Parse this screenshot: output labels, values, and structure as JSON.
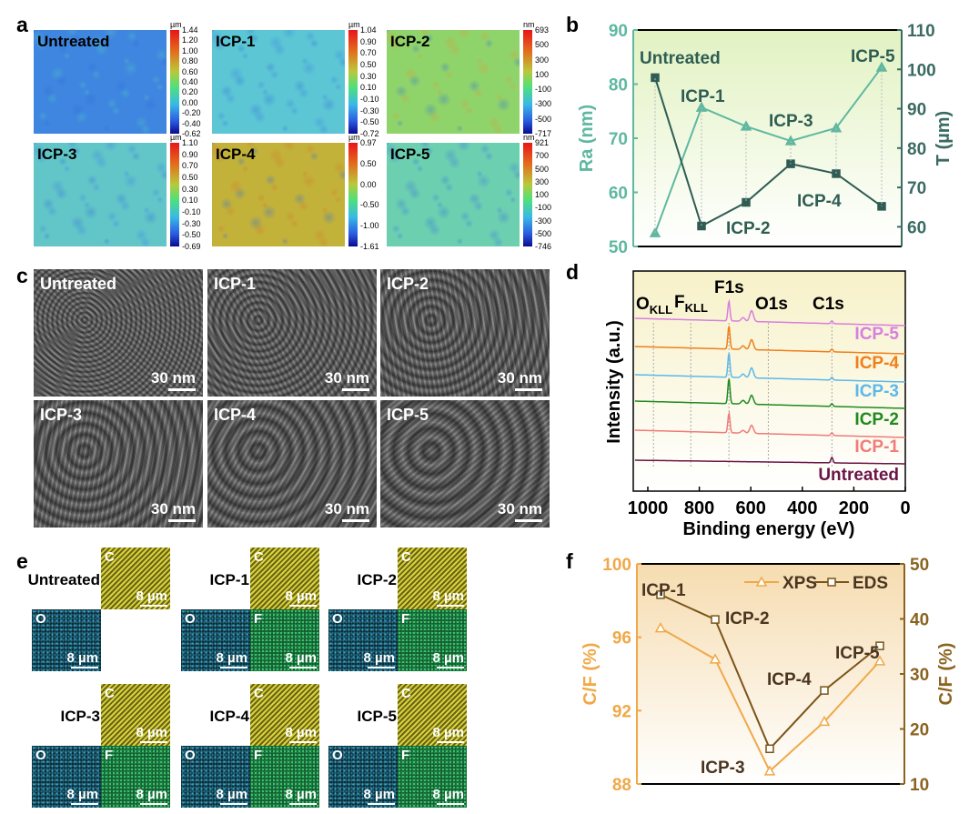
{
  "panel_labels": [
    "a",
    "b",
    "c",
    "d",
    "e",
    "f"
  ],
  "afm_maps": [
    {
      "name": "Untreated",
      "unit": "µm",
      "ticks": [
        "1.44",
        "1.20",
        "1.00",
        "0.80",
        "0.60",
        "0.40",
        "0.20",
        "0.00",
        "-0.20",
        "-0.40",
        "-0.62"
      ],
      "base": "#3f86e0",
      "spot": "#4fc8c0"
    },
    {
      "name": "ICP-1",
      "unit": "µm",
      "ticks": [
        "1.04",
        "0.90",
        "0.70",
        "0.50",
        "0.30",
        "0.10",
        "-0.10",
        "-0.30",
        "-0.50",
        "-0.72"
      ],
      "base": "#5cc6d4",
      "spot": "#3a7ee0"
    },
    {
      "name": "ICP-2",
      "unit": "nm",
      "ticks": [
        "693",
        "500",
        "300",
        "100",
        "-100",
        "-300",
        "-500",
        "-717"
      ],
      "base": "#8fd46a",
      "spot": "#d89a3a"
    },
    {
      "name": "ICP-3",
      "unit": "µm",
      "ticks": [
        "1.10",
        "0.90",
        "0.70",
        "0.50",
        "0.30",
        "0.10",
        "-0.10",
        "-0.30",
        "-0.50",
        "-0.69"
      ],
      "base": "#62c6c8",
      "spot": "#3a80e0"
    },
    {
      "name": "ICP-4",
      "unit": "µm",
      "ticks": [
        "0.97",
        "0.50",
        "0.00",
        "-0.50",
        "-1.00",
        "-1.61"
      ],
      "base": "#c2b23a",
      "spot": "#d4762a"
    },
    {
      "name": "ICP-5",
      "unit": "nm",
      "ticks": [
        "921",
        "700",
        "500",
        "300",
        "100",
        "-100",
        "-300",
        "-500",
        "-746"
      ],
      "base": "#6cd0b0",
      "spot": "#3a70e0"
    }
  ],
  "sem_images": [
    {
      "name": "Untreated",
      "scale": "30 nm"
    },
    {
      "name": "ICP-1",
      "scale": "30 nm"
    },
    {
      "name": "ICP-2",
      "scale": "30 nm"
    },
    {
      "name": "ICP-3",
      "scale": "30 nm"
    },
    {
      "name": "ICP-4",
      "scale": "30 nm"
    },
    {
      "name": "ICP-5",
      "scale": "30 nm"
    }
  ],
  "eds_maps": [
    {
      "name": "Untreated",
      "elements": [
        {
          "el": "C",
          "scale": "8 µm"
        },
        {
          "el": "O",
          "scale": "8 µm"
        }
      ]
    },
    {
      "name": "ICP-1",
      "elements": [
        {
          "el": "C",
          "scale": "8 µm"
        },
        {
          "el": "O",
          "scale": "8 µm"
        },
        {
          "el": "F",
          "scale": "8 µm"
        }
      ]
    },
    {
      "name": "ICP-2",
      "elements": [
        {
          "el": "C",
          "scale": "8 µm"
        },
        {
          "el": "O",
          "scale": "8 µm"
        },
        {
          "el": "F",
          "scale": "8 µm"
        }
      ]
    },
    {
      "name": "ICP-3",
      "elements": [
        {
          "el": "C",
          "scale": "8 µm"
        },
        {
          "el": "O",
          "scale": "8 µm"
        },
        {
          "el": "F",
          "scale": "8 µm"
        }
      ]
    },
    {
      "name": "ICP-4",
      "elements": [
        {
          "el": "C",
          "scale": "8 µm"
        },
        {
          "el": "O",
          "scale": "8 µm"
        },
        {
          "el": "F",
          "scale": "8 µm"
        }
      ]
    },
    {
      "name": "ICP-5",
      "elements": [
        {
          "el": "C",
          "scale": "8 µm"
        },
        {
          "el": "O",
          "scale": "8 µm"
        },
        {
          "el": "F",
          "scale": "8 µm"
        }
      ]
    }
  ],
  "chart_data": [
    {
      "id": "b",
      "type": "line",
      "categories": [
        "Untreated",
        "ICP-1",
        "ICP-2",
        "ICP-3",
        "ICP-4",
        "ICP-5"
      ],
      "series": [
        {
          "name": "Ra",
          "axis": "left",
          "marker": "triangle",
          "color": "#5fb8a0",
          "values": [
            52.5,
            75.7,
            72.2,
            69.5,
            71.9,
            83.1
          ]
        },
        {
          "name": "T",
          "axis": "right",
          "marker": "square",
          "color": "#2f5d54",
          "values": [
            97.9,
            60.2,
            66.2,
            76.0,
            73.5,
            65.2
          ]
        }
      ],
      "ylabel": "Ra (nm)",
      "y2label": "T (µm)",
      "ylim": [
        50,
        90
      ],
      "y2lim": [
        55,
        110
      ],
      "yticks": [
        50,
        60,
        70,
        80,
        90
      ],
      "y2ticks": [
        60,
        70,
        80,
        90,
        100,
        110
      ],
      "grid": false
    },
    {
      "id": "d",
      "type": "line",
      "xlabel": "Binding energy (eV)",
      "ylabel": "Intensity (a.u.)",
      "xlim": [
        1050,
        0
      ],
      "xticks": [
        1000,
        800,
        600,
        400,
        200,
        0
      ],
      "annotations": [
        {
          "label": "O",
          "sub": "KLL",
          "energy": 978
        },
        {
          "label": "F",
          "sub": "KLL",
          "energy": 833
        },
        {
          "label": "F1s",
          "energy": 685
        },
        {
          "label": "O1s",
          "energy": 532
        },
        {
          "label": "C1s",
          "energy": 285
        }
      ],
      "series": [
        {
          "name": "ICP-5",
          "color": "#d77fe0",
          "peaks": {
            "685": 22,
            "597": 12,
            "630": 4,
            "285": 3
          }
        },
        {
          "name": "ICP-4",
          "color": "#f07f1a",
          "peaks": {
            "685": 26,
            "597": 11,
            "630": 4,
            "285": 3
          }
        },
        {
          "name": "ICP-3",
          "color": "#5bb8ec",
          "peaks": {
            "685": 27,
            "597": 11,
            "630": 4,
            "285": 3
          }
        },
        {
          "name": "ICP-2",
          "color": "#1f8a1f",
          "peaks": {
            "685": 28,
            "597": 10,
            "630": 4,
            "285": 3
          }
        },
        {
          "name": "ICP-1",
          "color": "#f07b78",
          "peaks": {
            "685": 22,
            "597": 9,
            "630": 3,
            "285": 3
          }
        },
        {
          "name": "Untreated",
          "color": "#6b1446",
          "peaks": {
            "285": 6
          }
        }
      ]
    },
    {
      "id": "f",
      "type": "line",
      "categories": [
        "ICP-1",
        "ICP-2",
        "ICP-3",
        "ICP-4",
        "ICP-5"
      ],
      "series": [
        {
          "name": "XPS",
          "axis": "left",
          "marker": "triangle",
          "color": "#f0a848",
          "values": [
            96.5,
            94.8,
            88.7,
            91.4,
            94.7
          ]
        },
        {
          "name": "EDS",
          "axis": "right",
          "marker": "square",
          "color": "#7a5418",
          "values": [
            44.4,
            39.9,
            16.4,
            27.0,
            35.1
          ]
        }
      ],
      "ylabel": "C/F (%)",
      "y2label": "C/F (%)",
      "ylim": [
        88,
        100
      ],
      "y2lim": [
        10,
        50
      ],
      "yticks": [
        88,
        92,
        96,
        100
      ],
      "y2ticks": [
        10,
        20,
        30,
        40,
        50
      ],
      "legend": "top-right",
      "grid": false
    }
  ]
}
